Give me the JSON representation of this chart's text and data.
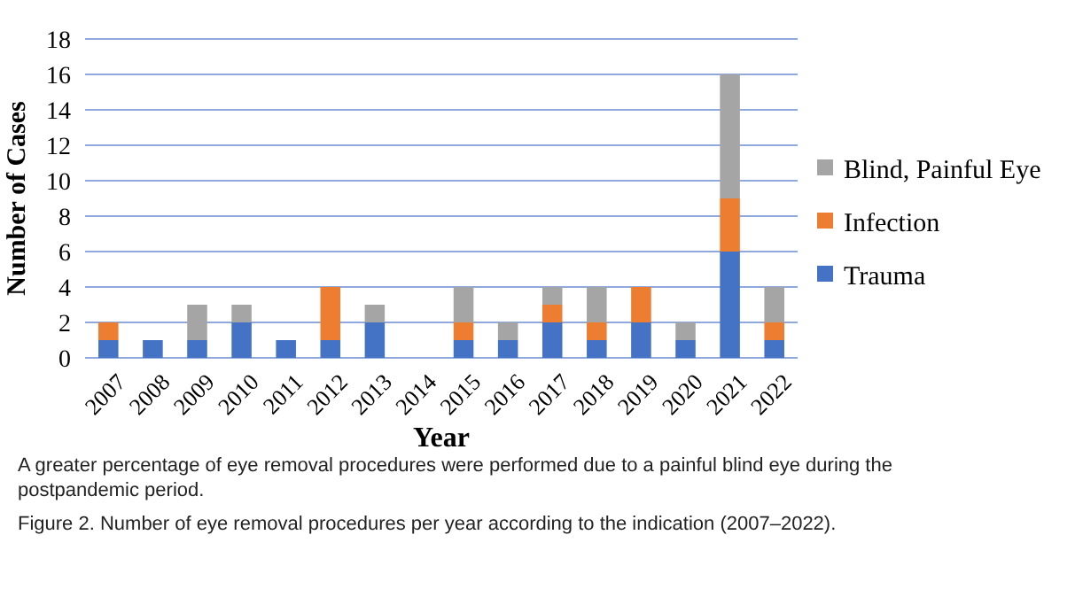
{
  "chart_data": {
    "type": "bar",
    "stacked": true,
    "xlabel": "Year",
    "ylabel": "Number of Cases",
    "categories": [
      "2007",
      "2008",
      "2009",
      "2010",
      "2011",
      "2012",
      "2013",
      "2014",
      "2015",
      "2016",
      "2017",
      "2018",
      "2019",
      "2020",
      "2021",
      "2022"
    ],
    "series": [
      {
        "name": "Trauma",
        "color": "#4472c4",
        "values": [
          1,
          1,
          1,
          2,
          1,
          1,
          2,
          0,
          1,
          1,
          2,
          1,
          2,
          1,
          6,
          1
        ]
      },
      {
        "name": "Infection",
        "color": "#ed7d31",
        "values": [
          1,
          0,
          0,
          0,
          0,
          3,
          0,
          0,
          1,
          0,
          1,
          1,
          2,
          0,
          3,
          1
        ]
      },
      {
        "name": "Blind, Painful Eye",
        "color": "#a5a5a5",
        "values": [
          0,
          0,
          2,
          1,
          0,
          0,
          1,
          0,
          2,
          1,
          1,
          2,
          0,
          1,
          7,
          2
        ]
      }
    ],
    "ylim": [
      0,
      18
    ],
    "yticks": [
      0,
      2,
      4,
      6,
      8,
      10,
      12,
      14,
      16,
      18
    ],
    "grid": "y",
    "legend": "right",
    "annotations": [
      "A greater percentage of eye removal procedures were performed due to a painful blind eye during the postpandemic period.",
      "Figure 2. Number of eye removal procedures per year according to the indication (2007–2022)."
    ]
  }
}
